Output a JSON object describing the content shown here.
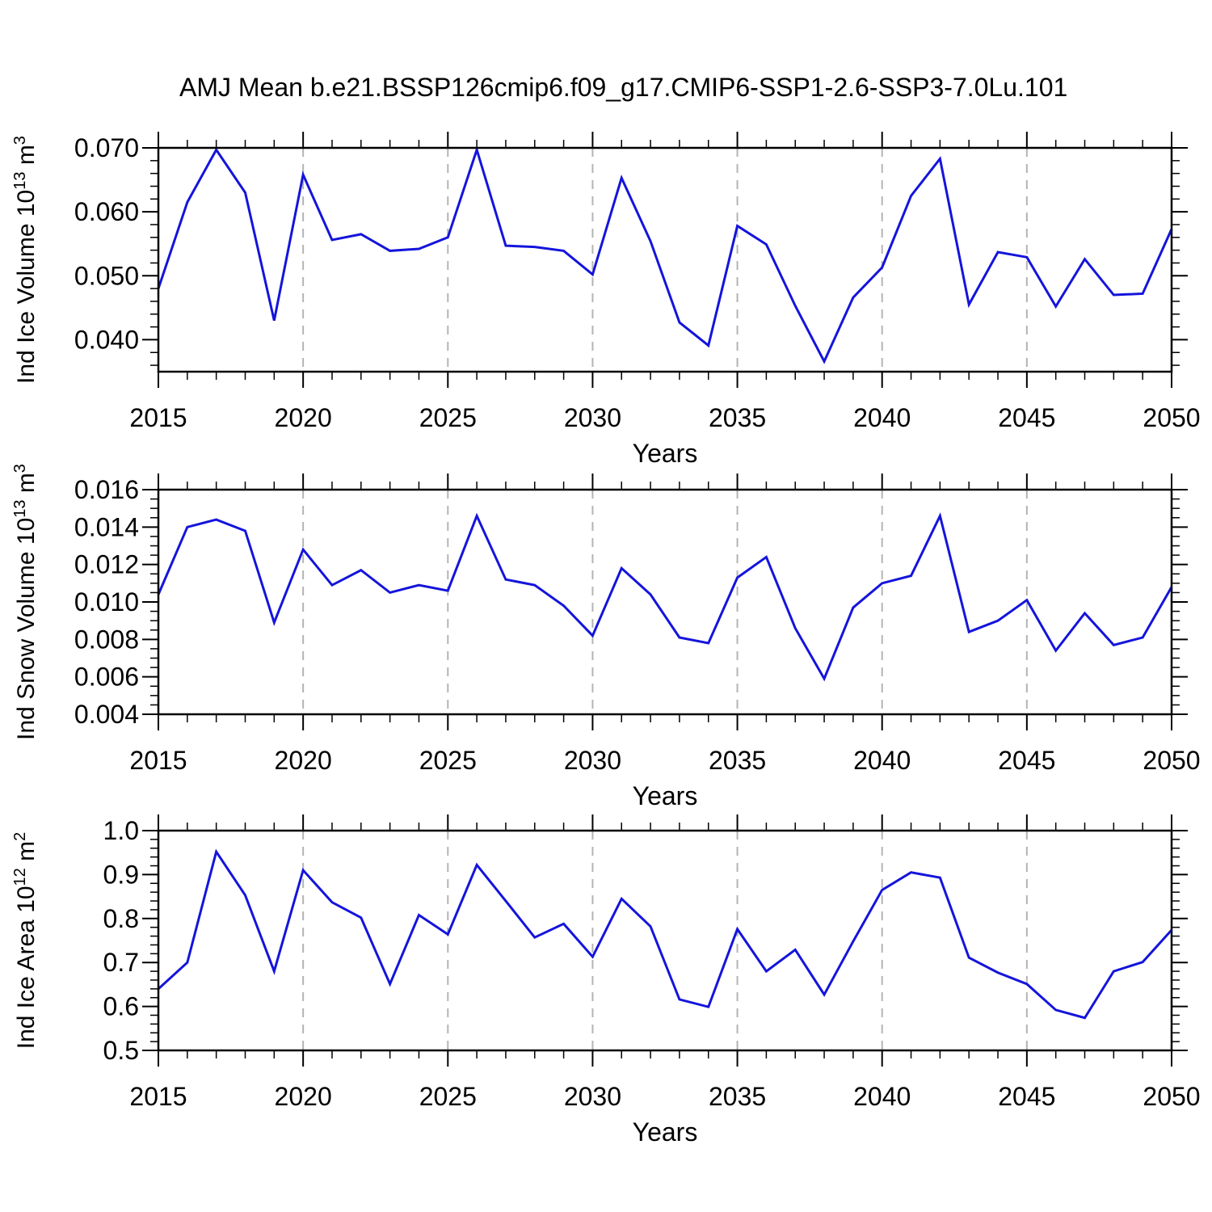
{
  "title": "AMJ Mean b.e21.BSSP126cmip6.f09_g17.CMIP6-SSP1-2.6-SSP3-7.0Lu.101",
  "chart_data": {
    "type": "line",
    "xlabel": "Years",
    "x_range": [
      2015,
      2050
    ],
    "x_years": [
      2015,
      2016,
      2017,
      2018,
      2019,
      2020,
      2021,
      2022,
      2023,
      2024,
      2025,
      2026,
      2027,
      2028,
      2029,
      2030,
      2031,
      2032,
      2033,
      2034,
      2035,
      2036,
      2037,
      2038,
      2039,
      2040,
      2041,
      2042,
      2043,
      2044,
      2045,
      2046,
      2047,
      2048,
      2049,
      2050
    ],
    "x_major_ticks": [
      2015,
      2020,
      2025,
      2030,
      2035,
      2040,
      2045,
      2050
    ],
    "x_tick_labels": [
      "2015",
      "2020",
      "2025",
      "2030",
      "2035",
      "2040",
      "2045",
      "2050"
    ],
    "x_gridlines": [
      2020,
      2025,
      2030,
      2035,
      2040,
      2045
    ],
    "grid_on": true,
    "legend": "none",
    "line_color": "#1414dc",
    "grid_color": "#b4b4b4",
    "axis_color": "#000000",
    "panels": [
      {
        "id": "ind-ice-volume",
        "ylabel_text": "Ind Ice Volume 10^13 m^3",
        "ylabel_parts": [
          {
            "t": "Ind Ice Volume 10"
          },
          {
            "t": "13",
            "sup": true
          },
          {
            "t": " m"
          },
          {
            "t": "3",
            "sup": true
          }
        ],
        "ylim": [
          0.035,
          0.07
        ],
        "y_ticks": [
          {
            "v": 0.07,
            "label": "0.070"
          },
          {
            "v": 0.06,
            "label": "0.060"
          },
          {
            "v": 0.05,
            "label": "0.050"
          },
          {
            "v": 0.04,
            "label": "0.040"
          }
        ],
        "y_minor_step": 0.002,
        "values": [
          0.048,
          0.0615,
          0.0697,
          0.063,
          0.043,
          0.0658,
          0.0556,
          0.0565,
          0.0539,
          0.0542,
          0.056,
          0.0697,
          0.0547,
          0.0545,
          0.0539,
          0.0502,
          0.0653,
          0.0554,
          0.0427,
          0.0391,
          0.0578,
          0.0549,
          0.0453,
          0.0366,
          0.0466,
          0.0513,
          0.0625,
          0.0683,
          0.0455,
          0.0537,
          0.0529,
          0.0452,
          0.0526,
          0.047,
          0.0472,
          0.0573
        ]
      },
      {
        "id": "ind-snow-volume",
        "ylabel_text": "Ind Snow Volume 10^13 m^3",
        "ylabel_parts": [
          {
            "t": "Ind Snow Volume 10"
          },
          {
            "t": "13",
            "sup": true
          },
          {
            "t": " m"
          },
          {
            "t": "3",
            "sup": true
          }
        ],
        "ylim": [
          0.004,
          0.016
        ],
        "y_ticks": [
          {
            "v": 0.016,
            "label": "0.016"
          },
          {
            "v": 0.014,
            "label": "0.014"
          },
          {
            "v": 0.012,
            "label": "0.012"
          },
          {
            "v": 0.01,
            "label": "0.010"
          },
          {
            "v": 0.008,
            "label": "0.008"
          },
          {
            "v": 0.006,
            "label": "0.006"
          },
          {
            "v": 0.004,
            "label": "0.004"
          }
        ],
        "y_minor_step": 0.0005,
        "values": [
          0.0104,
          0.014,
          0.0144,
          0.0138,
          0.0089,
          0.0128,
          0.0109,
          0.0117,
          0.0105,
          0.0109,
          0.0106,
          0.0146,
          0.0112,
          0.0109,
          0.0098,
          0.0082,
          0.0118,
          0.0104,
          0.0081,
          0.0078,
          0.0113,
          0.0124,
          0.0086,
          0.0059,
          0.0097,
          0.011,
          0.0114,
          0.0146,
          0.0084,
          0.009,
          0.0101,
          0.0074,
          0.0094,
          0.0077,
          0.0081,
          0.0108
        ]
      },
      {
        "id": "ind-ice-area",
        "ylabel_text": "Ind Ice Area 10^12 m^2",
        "ylabel_parts": [
          {
            "t": "Ind Ice Area 10"
          },
          {
            "t": "12",
            "sup": true
          },
          {
            "t": " m"
          },
          {
            "t": "2",
            "sup": true
          }
        ],
        "ylim": [
          0.5,
          1.0
        ],
        "y_ticks": [
          {
            "v": 1.0,
            "label": "1.0"
          },
          {
            "v": 0.9,
            "label": "0.9"
          },
          {
            "v": 0.8,
            "label": "0.8"
          },
          {
            "v": 0.7,
            "label": "0.7"
          },
          {
            "v": 0.6,
            "label": "0.6"
          },
          {
            "v": 0.5,
            "label": "0.5"
          }
        ],
        "y_minor_step": 0.02,
        "values": [
          0.64,
          0.7,
          0.952,
          0.853,
          0.68,
          0.91,
          0.837,
          0.802,
          0.651,
          0.808,
          0.764,
          0.922,
          0.84,
          0.757,
          0.788,
          0.713,
          0.845,
          0.782,
          0.616,
          0.599,
          0.776,
          0.68,
          0.729,
          0.627,
          0.748,
          0.865,
          0.905,
          0.893,
          0.711,
          0.677,
          0.651,
          0.592,
          0.574,
          0.68,
          0.701,
          0.774
        ]
      }
    ]
  }
}
